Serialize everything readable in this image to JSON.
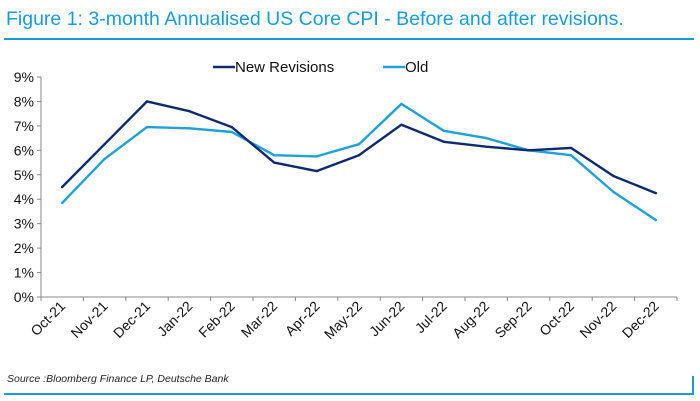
{
  "title": "Figure 1: 3-month Annualised US Core CPI - Before and after revisions.",
  "source": "Source :Bloomberg Finance LP, Deutsche Bank",
  "colors": {
    "accent": "#1a9bd7",
    "new": "#0d2a6e",
    "old": "#1ea0d8"
  },
  "chart_data": {
    "type": "line",
    "title": "Figure 1: 3-month Annualised US Core CPI - Before and after revisions.",
    "xlabel": "",
    "ylabel": "",
    "categories": [
      "Oct-21",
      "Nov-21",
      "Dec-21",
      "Jan-22",
      "Feb-22",
      "Mar-22",
      "Apr-22",
      "May-22",
      "Jun-22",
      "Jul-22",
      "Aug-22",
      "Sep-22",
      "Oct-22",
      "Nov-22",
      "Dec-22"
    ],
    "yticks": [
      "0%",
      "1%",
      "2%",
      "3%",
      "4%",
      "5%",
      "6%",
      "7%",
      "8%",
      "9%"
    ],
    "ylim": [
      0,
      9
    ],
    "grid": false,
    "legend": "top",
    "series": [
      {
        "name": "New Revisions",
        "color": "#0d2a6e",
        "values": [
          4.5,
          6.25,
          8.0,
          7.6,
          6.95,
          5.5,
          5.15,
          5.8,
          7.05,
          6.35,
          6.15,
          6.0,
          6.1,
          4.95,
          4.25
        ]
      },
      {
        "name": "Old",
        "color": "#1ea0d8",
        "values": [
          3.85,
          5.65,
          6.95,
          6.9,
          6.75,
          5.8,
          5.75,
          6.25,
          7.9,
          6.8,
          6.5,
          6.0,
          5.8,
          4.3,
          3.15
        ]
      }
    ]
  }
}
